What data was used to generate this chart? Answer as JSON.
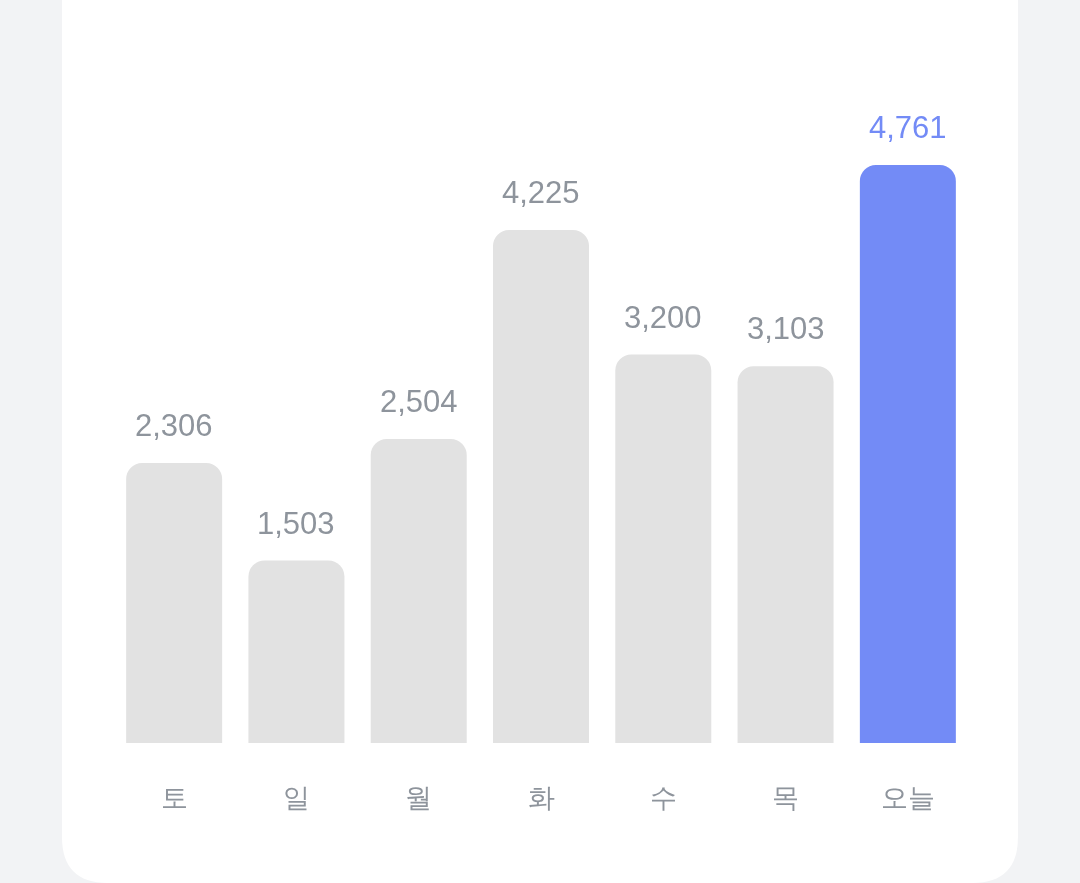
{
  "chart_data": {
    "type": "bar",
    "categories": [
      "토",
      "일",
      "월",
      "화",
      "수",
      "목",
      "오늘"
    ],
    "values": [
      2306,
      1503,
      2504,
      4225,
      3200,
      3103,
      4761
    ],
    "value_labels": [
      "2,306",
      "1,503",
      "2,504",
      "4,225",
      "3,200",
      "3,103",
      "4,761"
    ],
    "colors": [
      "#e2e2e2",
      "#e2e2e2",
      "#e2e2e2",
      "#e2e2e2",
      "#e2e2e2",
      "#e2e2e2",
      "#738bf6"
    ]
  }
}
